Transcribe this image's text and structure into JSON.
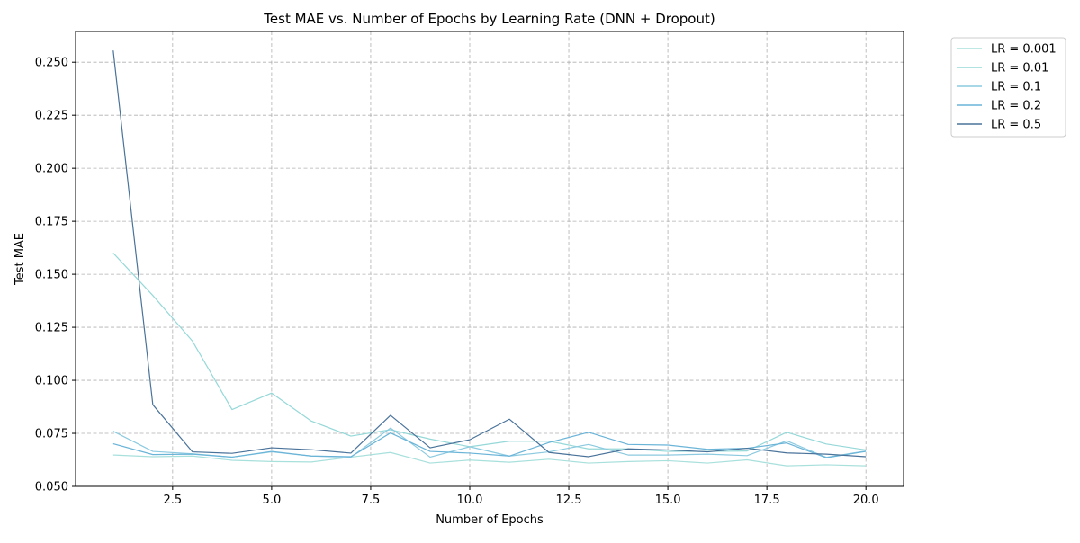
{
  "chart_data": {
    "type": "line",
    "title": "Test MAE vs. Number of Epochs by Learning Rate (DNN + Dropout)",
    "xlabel": "Number of Epochs",
    "ylabel": "Test MAE",
    "xlim": [
      0.05,
      20.95
    ],
    "ylim": [
      0.05,
      0.2645
    ],
    "xticks": [
      2.5,
      5.0,
      7.5,
      10.0,
      12.5,
      15.0,
      17.5,
      20.0
    ],
    "xtick_labels": [
      "2.5",
      "5.0",
      "7.5",
      "10.0",
      "12.5",
      "15.0",
      "17.5",
      "20.0"
    ],
    "yticks": [
      0.05,
      0.075,
      0.1,
      0.125,
      0.15,
      0.175,
      0.2,
      0.225,
      0.25
    ],
    "ytick_labels": [
      "0.050",
      "0.075",
      "0.100",
      "0.125",
      "0.150",
      "0.175",
      "0.200",
      "0.225",
      "0.250"
    ],
    "grid": true,
    "legend_position": "outside-top-right",
    "x": [
      1,
      2,
      3,
      4,
      5,
      6,
      7,
      8,
      9,
      10,
      11,
      12,
      13,
      14,
      15,
      16,
      17,
      18,
      19,
      20
    ],
    "series": [
      {
        "name": "LR = 0.001",
        "color": "#a8e0dc",
        "values": [
          0.0648,
          0.064,
          0.0643,
          0.0623,
          0.0617,
          0.0615,
          0.0638,
          0.066,
          0.061,
          0.0624,
          0.0614,
          0.0628,
          0.061,
          0.0617,
          0.0621,
          0.061,
          0.0625,
          0.0597,
          0.0602,
          0.0597
        ]
      },
      {
        "name": "LR = 0.01",
        "color": "#96d8d8",
        "values": [
          0.16,
          0.14,
          0.1185,
          0.0862,
          0.094,
          0.0808,
          0.0737,
          0.0767,
          0.0723,
          0.0687,
          0.0713,
          0.0713,
          0.0677,
          0.0677,
          0.0665,
          0.0665,
          0.0667,
          0.0755,
          0.07,
          0.0672
        ]
      },
      {
        "name": "LR = 0.1",
        "color": "#8ccae0",
        "values": [
          0.076,
          0.0665,
          0.0654,
          0.0638,
          0.0663,
          0.0643,
          0.0638,
          0.0775,
          0.0638,
          0.0687,
          0.0643,
          0.0663,
          0.0698,
          0.0648,
          0.0648,
          0.0652,
          0.0645,
          0.0715,
          0.0637,
          0.0667
        ]
      },
      {
        "name": "LR = 0.2",
        "color": "#6ab4d8",
        "values": [
          0.0701,
          0.065,
          0.0652,
          0.0638,
          0.0665,
          0.0643,
          0.064,
          0.0752,
          0.0665,
          0.0657,
          0.0643,
          0.0707,
          0.0755,
          0.0698,
          0.0695,
          0.0675,
          0.068,
          0.0705,
          0.0635,
          0.0665
        ]
      },
      {
        "name": "LR = 0.5",
        "color": "#4a739a",
        "values": [
          0.2555,
          0.0885,
          0.0663,
          0.0656,
          0.0682,
          0.0673,
          0.0657,
          0.0835,
          0.0682,
          0.072,
          0.0817,
          0.066,
          0.064,
          0.0677,
          0.0672,
          0.0663,
          0.068,
          0.0658,
          0.0652,
          0.064
        ]
      }
    ]
  }
}
